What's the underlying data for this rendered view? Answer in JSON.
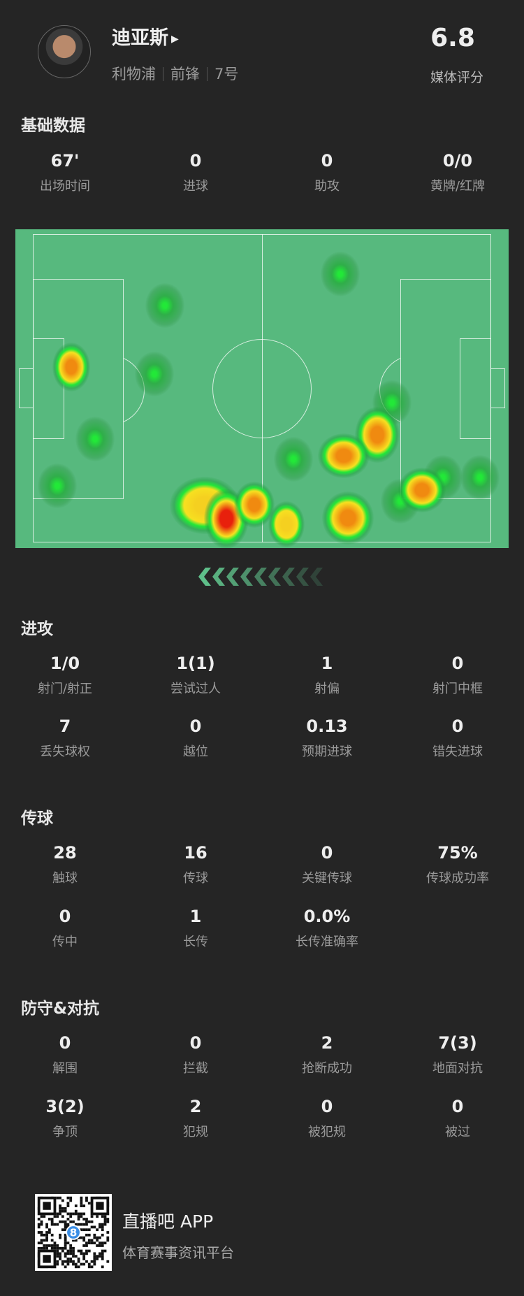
{
  "header": {
    "name": "迪亚斯",
    "team": "利物浦",
    "position": "前锋",
    "number": "7号",
    "rating": "6.8",
    "rating_label": "媒体评分"
  },
  "basic": {
    "title": "基础数据",
    "stats": [
      {
        "value": "67'",
        "label": "出场时间"
      },
      {
        "value": "0",
        "label": "进球"
      },
      {
        "value": "0",
        "label": "助攻"
      },
      {
        "value": "0/0",
        "label": "黄牌/红牌"
      }
    ]
  },
  "attack": {
    "title": "进攻",
    "stats": [
      {
        "value": "1/0",
        "label": "射门/射正"
      },
      {
        "value": "1(1)",
        "label": "尝试过人"
      },
      {
        "value": "1",
        "label": "射偏"
      },
      {
        "value": "0",
        "label": "射门中框"
      },
      {
        "value": "7",
        "label": "丢失球权"
      },
      {
        "value": "0",
        "label": "越位"
      },
      {
        "value": "0.13",
        "label": "预期进球"
      },
      {
        "value": "0",
        "label": "错失进球"
      }
    ]
  },
  "passing": {
    "title": "传球",
    "stats": [
      {
        "value": "28",
        "label": "触球"
      },
      {
        "value": "16",
        "label": "传球"
      },
      {
        "value": "0",
        "label": "关键传球"
      },
      {
        "value": "75%",
        "label": "传球成功率"
      },
      {
        "value": "0",
        "label": "传中"
      },
      {
        "value": "1",
        "label": "长传"
      },
      {
        "value": "0.0%",
        "label": "长传准确率"
      }
    ]
  },
  "defense": {
    "title": "防守&对抗",
    "stats": [
      {
        "value": "0",
        "label": "解围"
      },
      {
        "value": "0",
        "label": "拦截"
      },
      {
        "value": "2",
        "label": "抢断成功"
      },
      {
        "value": "7(3)",
        "label": "地面对抗"
      },
      {
        "value": "3(2)",
        "label": "争顶"
      },
      {
        "value": "2",
        "label": "犯规"
      },
      {
        "value": "0",
        "label": "被犯规"
      },
      {
        "value": "0",
        "label": "被过"
      }
    ]
  },
  "footer": {
    "app_name": "直播吧 APP",
    "slogan": "体育赛事资讯平台",
    "qr_badge": "8"
  },
  "colors": {
    "background": "#252525",
    "pitch": "#57b97e",
    "chevron": "#5fbf8a"
  },
  "icons": {
    "name_arrow": "play-triangle-icon",
    "direction": "chevron-left-icon"
  }
}
